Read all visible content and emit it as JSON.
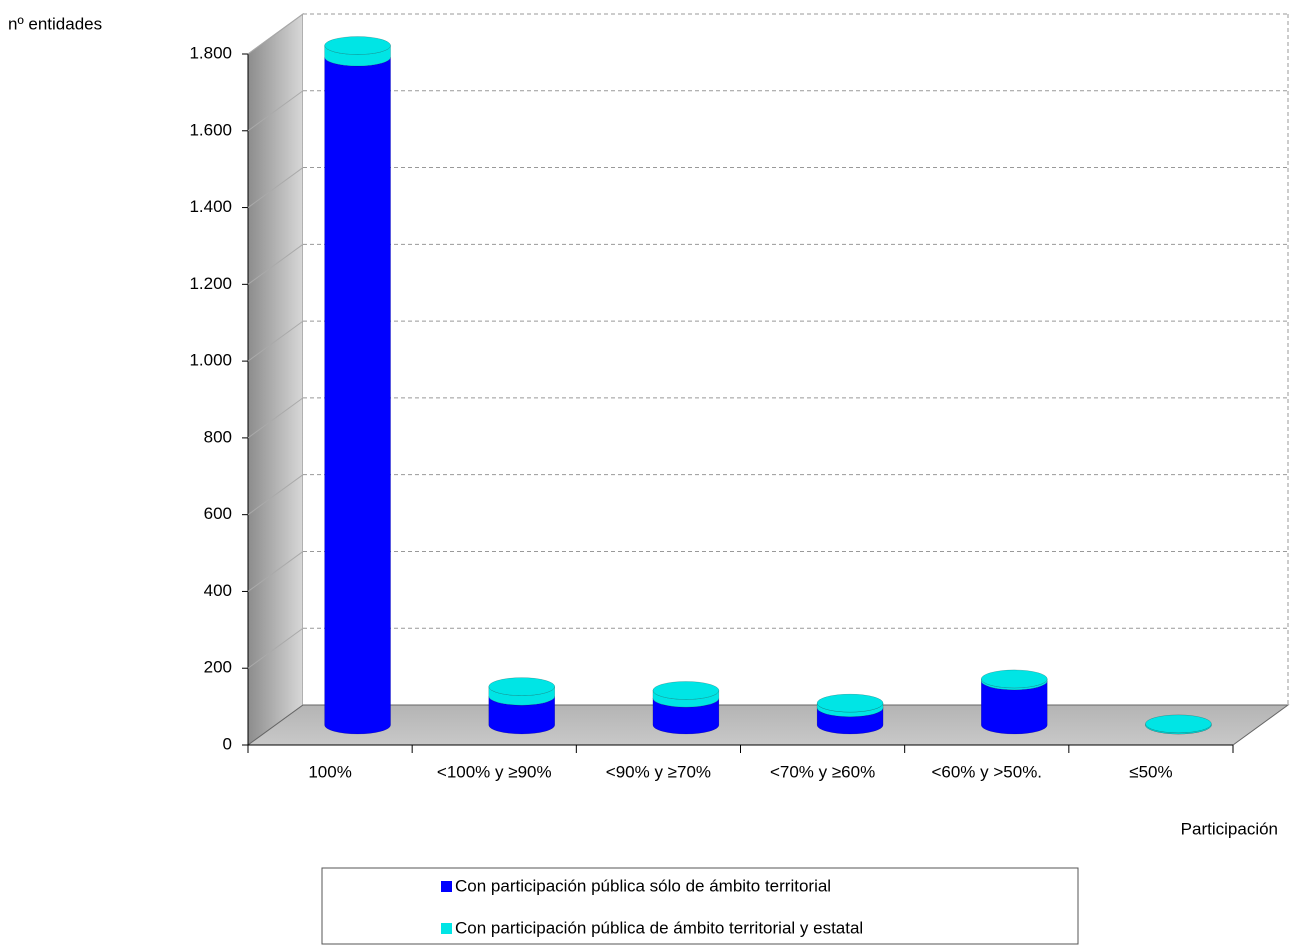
{
  "chart_data": {
    "type": "bar",
    "stacked": true,
    "x_label": "Participación",
    "y_label": "nº entidades",
    "categories": [
      "100%",
      "<100% y ≥90%",
      "<90% y ≥70%",
      "<70% y ≥60%",
      "<60% y >50%.",
      "≤50%"
    ],
    "series": [
      {
        "name": "Con participación pública sólo de ámbito territorial",
        "color": "#0000ff",
        "values": [
          1740,
          75,
          70,
          45,
          115,
          0
        ]
      },
      {
        "name": "Con participación pública de ámbito territorial y estatal",
        "color": "#00e5e5",
        "values": [
          30,
          25,
          20,
          12,
          5,
          3
        ]
      }
    ],
    "ylim": [
      0,
      1800
    ],
    "yticks": [
      0,
      200,
      400,
      600,
      800,
      {
        "value": 1000,
        "label": "1.000"
      },
      {
        "value": 1200,
        "label": "1.200"
      },
      {
        "value": 1400,
        "label": "1.400"
      },
      {
        "value": 1600,
        "label": "1.600"
      },
      {
        "value": 1800,
        "label": "1.800"
      }
    ],
    "grid": true,
    "legend": "bottom"
  }
}
